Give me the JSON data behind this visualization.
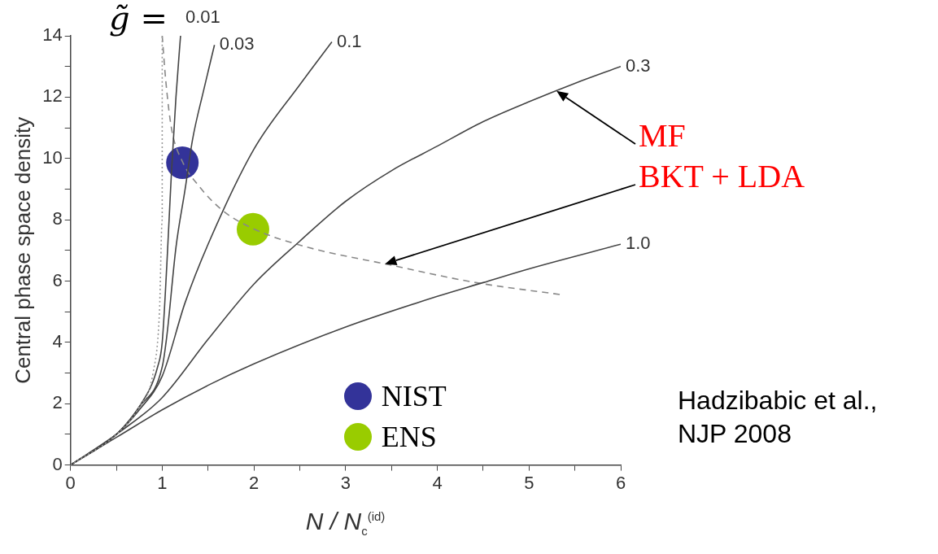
{
  "chart_data": {
    "type": "line",
    "xlabel": "N / N$_{c}$$^{(id)}$",
    "ylabel": "Central phase space density",
    "xlim": [
      0,
      6
    ],
    "ylim": [
      0,
      14
    ],
    "xticks": [
      0,
      {
        "value": 0.5,
        "label": null
      },
      1,
      {
        "value": 1.5,
        "label": null
      },
      2,
      {
        "value": 2.5,
        "label": null
      },
      3,
      {
        "value": 3.5,
        "label": null
      },
      4,
      {
        "value": 4.5,
        "label": null
      },
      5,
      {
        "value": 5.5,
        "label": null
      },
      6
    ],
    "yticks": [
      0,
      {
        "value": 1,
        "label": null
      },
      2,
      {
        "value": 3,
        "label": null
      },
      4,
      {
        "value": 5,
        "label": null
      },
      6,
      {
        "value": 7,
        "label": null
      },
      8,
      {
        "value": 9,
        "label": null
      },
      10,
      {
        "value": 11,
        "label": null
      },
      12,
      {
        "value": 13,
        "label": null
      },
      14
    ],
    "grid": false,
    "legend": "bottom",
    "series": [
      {
        "type": "line",
        "line_style": "dotted",
        "color": "#999999",
        "x": [
          0,
          0.5,
          0.75,
          0.9,
          0.97,
          1.0,
          1.0
        ],
        "values": [
          0,
          1.0,
          1.9,
          3.0,
          5.0,
          8.0,
          14.0
        ]
      },
      {
        "type": "line",
        "name": "0.01",
        "color": "#444444",
        "x": [
          0,
          0.5,
          0.75,
          0.95,
          1.0,
          1.05,
          1.1,
          1.15,
          1.2
        ],
        "values": [
          0,
          1.0,
          1.9,
          3.2,
          4.0,
          6.5,
          9.5,
          12.0,
          14.0
        ]
      },
      {
        "type": "line",
        "name": "0.03",
        "color": "#444444",
        "x": [
          0,
          0.5,
          0.75,
          1.0,
          1.05,
          1.15,
          1.25,
          1.33,
          1.45,
          1.57
        ],
        "values": [
          0,
          1.0,
          1.9,
          3.2,
          4.2,
          7.1,
          9.0,
          10.6,
          12.2,
          13.7
        ]
      },
      {
        "type": "line",
        "name": "0.1",
        "color": "#444444",
        "x": [
          0,
          0.5,
          0.75,
          1.0,
          1.25,
          1.5,
          2.0,
          2.5,
          2.85
        ],
        "values": [
          0,
          1.0,
          1.8,
          2.9,
          5.3,
          7.2,
          10.3,
          12.4,
          13.8
        ]
      },
      {
        "type": "line",
        "name": "0.3",
        "color": "#444444",
        "x": [
          0,
          0.5,
          1.0,
          1.5,
          2.0,
          2.5,
          3.0,
          3.5,
          4.0,
          4.5,
          5.0,
          5.5,
          6.0
        ],
        "values": [
          0,
          1.0,
          2.2,
          4.1,
          5.9,
          7.3,
          8.6,
          9.6,
          10.4,
          11.2,
          11.85,
          12.45,
          13.0
        ]
      },
      {
        "type": "line",
        "name": "1.0",
        "color": "#444444",
        "x": [
          0,
          0.5,
          1.0,
          1.5,
          2.0,
          3.0,
          4.0,
          4.5,
          5.0,
          6.0
        ],
        "values": [
          0,
          0.9,
          1.8,
          2.6,
          3.3,
          4.5,
          5.5,
          5.95,
          6.4,
          7.2
        ]
      },
      {
        "type": "line",
        "line_style": "dashed",
        "color": "#888888",
        "x": [
          1.0,
          1.04,
          1.1,
          1.22,
          1.4,
          1.66,
          2.0,
          2.59,
          3.43,
          4.42,
          5.34
        ],
        "values": [
          14.0,
          12.5,
          11.0,
          9.9,
          9.1,
          8.3,
          7.7,
          7.1,
          6.56,
          5.95,
          5.56
        ]
      },
      {
        "type": "scatter",
        "name": "NIST",
        "color": "#333399",
        "x": [
          1.22
        ],
        "values": [
          9.86
        ]
      },
      {
        "type": "scatter",
        "name": "ENS",
        "color": "#99cc00",
        "x": [
          1.99
        ],
        "values": [
          7.69
        ]
      }
    ],
    "annotations": [
      "g̃ =",
      {
        "text": "MF",
        "x": 5.3,
        "y": 12.2
      },
      "BKT + LDA",
      "Hadzibabic et al., NJP 2008"
    ]
  }
}
